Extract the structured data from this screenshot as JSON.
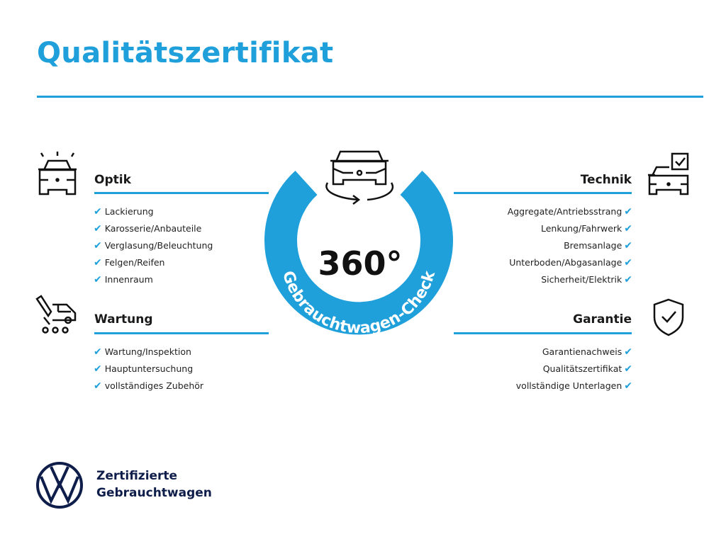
{
  "title": "Qualitätszertifikat",
  "colors": {
    "accent": "#1fa0db",
    "text": "#1a1a1a",
    "brand_navy": "#0f1d4a"
  },
  "center": {
    "number": "360°",
    "ring_text": "Gebrauchtwagen-Check",
    "icon": "car-rotate-icon"
  },
  "sections": {
    "optik": {
      "heading": "Optik",
      "icon": "car-lights-icon",
      "items": [
        "Lackierung",
        "Karosserie/Anbauteile",
        "Verglasung/Beleuchtung",
        "Felgen/Reifen",
        "Innenraum"
      ]
    },
    "wartung": {
      "heading": "Wartung",
      "icon": "service-van-icon",
      "items": [
        "Wartung/Inspektion",
        "Hauptuntersuchung",
        "vollständiges Zubehör"
      ]
    },
    "technik": {
      "heading": "Technik",
      "icon": "car-checkbox-icon",
      "items": [
        "Aggregate/Antriebsstrang",
        "Lenkung/Fahrwerk",
        "Bremsanlage",
        "Unterboden/Abgasanlage",
        "Sicherheit/Elektrik"
      ]
    },
    "garantie": {
      "heading": "Garantie",
      "icon": "shield-check-icon",
      "items": [
        "Garantienachweis",
        "Qualitätszertifikat",
        "vollständige Unterlagen"
      ]
    }
  },
  "check_glyph": "✔",
  "brand": {
    "line1": "Zertifizierte",
    "line2": "Gebrauchtwagen",
    "logo": "VW"
  }
}
